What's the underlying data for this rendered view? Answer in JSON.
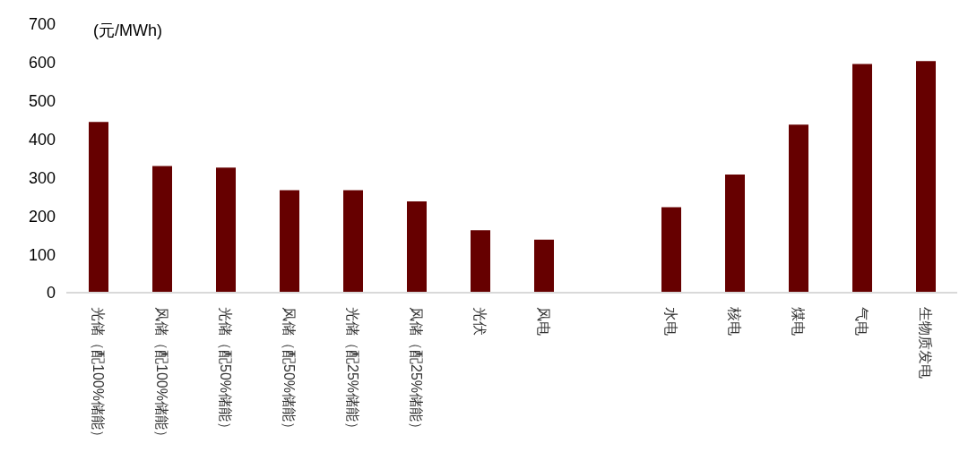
{
  "chart_data": {
    "type": "bar",
    "ylabel": "(元/MWh)",
    "categories": [
      "光储（配100%储能）",
      "风储（配100%储能）",
      "光储（配50%储能）",
      "风储（配50%储能）",
      "光储（配25%储能）",
      "风储（配25%储能）",
      "光伏",
      "风电",
      null,
      "水电",
      "核电",
      "煤电",
      "气电",
      "生物质发电"
    ],
    "values": [
      445,
      330,
      326,
      267,
      267,
      238,
      163,
      138,
      null,
      223,
      308,
      438,
      596,
      604
    ],
    "color": "#660000",
    "ylim": [
      0,
      700
    ],
    "yticks": [
      0,
      100,
      200,
      300,
      400,
      500,
      600,
      700
    ],
    "grid": false,
    "legend": false
  }
}
